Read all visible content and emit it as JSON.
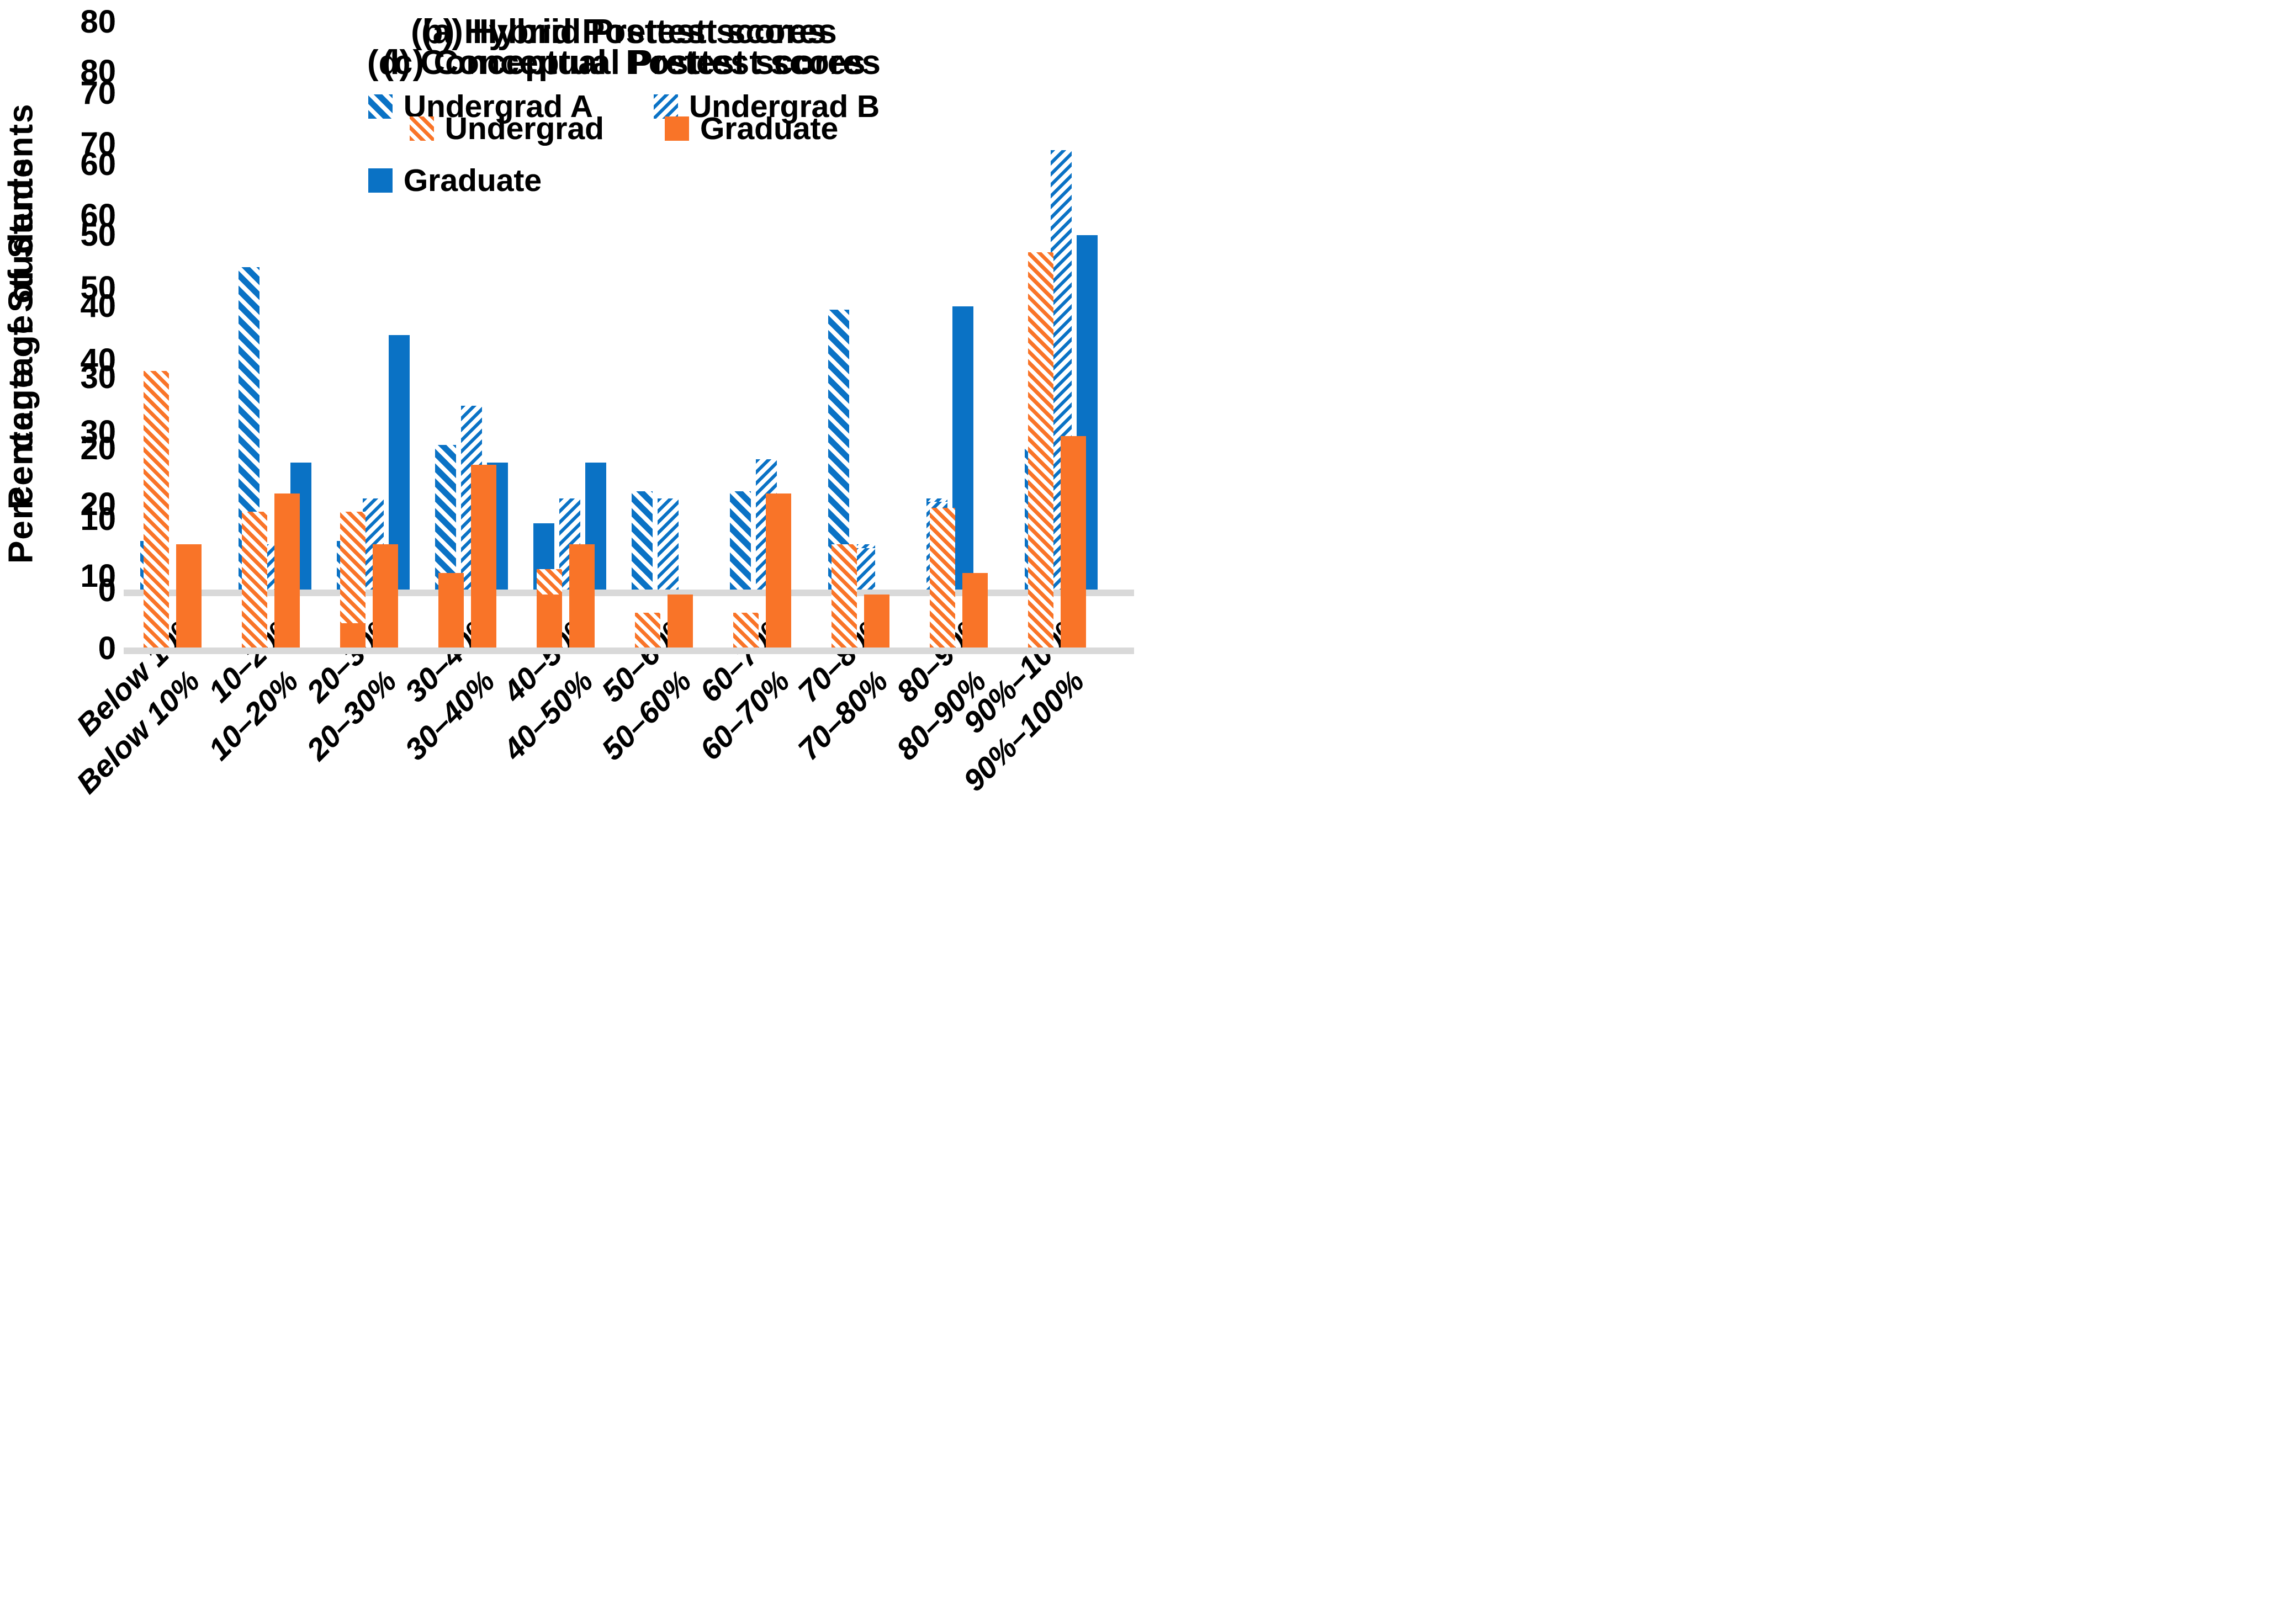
{
  "accent_blue": "#0a72c5",
  "accent_orange": "#f97428",
  "baseline_color": "#d9d9d9",
  "chart_data": [
    {
      "type": "bar",
      "panel": "a",
      "title": "(a) Hybrid Pretest scores",
      "ylabel": "Percentage of Students",
      "ylim": [
        0,
        80
      ],
      "yticks": [
        0,
        10,
        20,
        30,
        40,
        50,
        60,
        70,
        80
      ],
      "grid": false,
      "legend_position": "top-center-inside",
      "legend_rows": [
        [
          0,
          1
        ],
        [
          2
        ]
      ],
      "accent_color": "#0a72c5",
      "categories": [
        "Below 10%",
        "10–20%",
        "20–30%",
        "30–40%",
        "40–50%",
        "50–60%",
        "60–70%",
        "70–80%",
        "80–90%",
        "90%–100%"
      ],
      "series": [
        {
          "name": "Undergrad A",
          "pattern": "hatch-backslash",
          "values": [
            7,
            45.5,
            7,
            20.5,
            7,
            3.5,
            0,
            3.5,
            0,
            0
          ]
        },
        {
          "name": "Undergrad B",
          "pattern": "hatch-slash",
          "values": [
            0,
            6.5,
            13,
            26,
            13,
            13,
            6.5,
            6.5,
            13,
            0
          ]
        },
        {
          "name": "Graduate",
          "pattern": "solid",
          "values": [
            0,
            18,
            36,
            18,
            18,
            0,
            9,
            0,
            0,
            0
          ]
        }
      ]
    },
    {
      "type": "bar",
      "panel": "b",
      "title": "(b) Hybrid Posttest scores",
      "ylabel": "Percentage of Students",
      "ylim": [
        0,
        80
      ],
      "yticks": [
        0,
        10,
        20,
        30,
        40,
        50,
        60,
        70,
        80
      ],
      "grid": false,
      "legend_position": "top-center-inside",
      "legend_rows": [
        [
          0,
          1
        ],
        [
          2
        ]
      ],
      "accent_color": "#0a72c5",
      "categories": [
        "Below 10%",
        "10–20%",
        "20–30%",
        "30–40%",
        "40–50%",
        "50–60%",
        "60–70%",
        "70–80%",
        "80–90%",
        "90%–100%"
      ],
      "series": [
        {
          "name": "Undergrad A",
          "pattern": "hatch-backslash",
          "values": [
            0,
            0,
            0,
            10,
            0,
            14,
            14,
            39.5,
            0,
            20
          ]
        },
        {
          "name": "Undergrad B",
          "pattern": "hatch-slash",
          "values": [
            0,
            0,
            0,
            0,
            0,
            0,
            18.5,
            6,
            12.5,
            62
          ]
        },
        {
          "name": "Graduate",
          "pattern": "solid",
          "values": [
            0,
            0,
            0,
            0,
            9.5,
            0,
            0,
            0,
            40,
            50
          ]
        }
      ]
    },
    {
      "type": "bar",
      "panel": "c",
      "title": "(c) Conceptual Pretest scores",
      "ylabel": "Percentage of Students",
      "ylim": [
        0,
        80
      ],
      "yticks": [
        0,
        10,
        20,
        30,
        40,
        50,
        60,
        70,
        80
      ],
      "grid": false,
      "legend_position": "top-center-inside",
      "legend_rows": [
        [
          0,
          1
        ]
      ],
      "accent_color": "#f97428",
      "categories": [
        "Below 10%",
        "10–20%",
        "20–30%",
        "30–40%",
        "40–50%",
        "50–60%",
        "60–70%",
        "70–80%",
        "80–90%",
        "90%–100%"
      ],
      "series": [
        {
          "name": "Undergrad",
          "pattern": "hatch-backslash-thin",
          "values": [
            38.5,
            19,
            19,
            7.5,
            11,
            0,
            0,
            0,
            3.5,
            0
          ]
        },
        {
          "name": "Graduate",
          "pattern": "solid",
          "values": [
            14.5,
            21.5,
            14.5,
            25.5,
            14.5,
            3.5,
            0,
            3.5,
            0,
            0
          ]
        }
      ]
    },
    {
      "type": "bar",
      "panel": "d",
      "title": "(d) Conceptual  Posttest scores",
      "ylabel": "Percentage of Students",
      "ylim": [
        0,
        80
      ],
      "yticks": [
        0,
        10,
        20,
        30,
        40,
        50,
        60,
        70,
        80
      ],
      "grid": false,
      "legend_position": "top-center-inside",
      "legend_rows": [
        [
          0,
          1
        ]
      ],
      "accent_color": "#f97428",
      "categories": [
        "Below 10%",
        "10–20%",
        "20–30%",
        "30–40%",
        "40–50%",
        "50–60%",
        "60–70%",
        "70–80%",
        "80–90%",
        "90%–100%"
      ],
      "series": [
        {
          "name": "Undergrad",
          "pattern": "hatch-backslash-thin",
          "values": [
            0,
            0,
            0,
            0,
            0,
            5,
            5,
            14.5,
            19.5,
            55
          ]
        },
        {
          "name": "Graduate",
          "pattern": "solid",
          "values": [
            0,
            0,
            3.5,
            10.5,
            7.5,
            7.5,
            21.5,
            7.5,
            10.5,
            29.5
          ]
        }
      ]
    }
  ]
}
